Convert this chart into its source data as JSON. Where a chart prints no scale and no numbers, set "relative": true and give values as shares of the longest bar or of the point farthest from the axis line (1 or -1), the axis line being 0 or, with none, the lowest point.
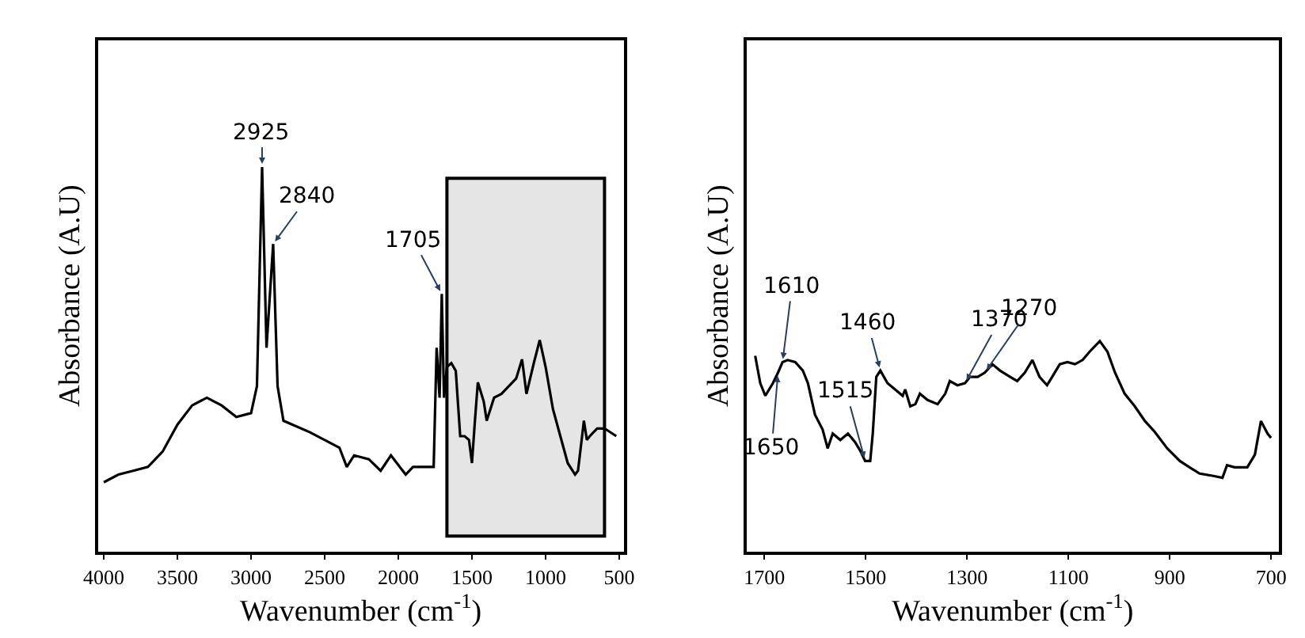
{
  "chart_data": [
    {
      "type": "line",
      "relative": true,
      "xlabel": "Wavenumber (cm$^{-1}$)",
      "ylabel": "Absorbance (A.U)",
      "xlim": [
        4040,
        470
      ],
      "xticks": [
        4000,
        3500,
        3000,
        2500,
        2000,
        1500,
        1000,
        500
      ],
      "tick_labels": "x",
      "grid": false,
      "series": [
        {
          "color": "#000000",
          "x": [
            4000,
            3900,
            3800,
            3700,
            3600,
            3500,
            3400,
            3300,
            3200,
            3100,
            3000,
            2960,
            2925,
            2895,
            2850,
            2820,
            2780,
            2600,
            2400,
            2350,
            2300,
            2200,
            2120,
            2050,
            1950,
            1900,
            1800,
            1760,
            1740,
            1720,
            1705,
            1690,
            1670,
            1640,
            1610,
            1580,
            1550,
            1520,
            1500,
            1480,
            1460,
            1420,
            1400,
            1350,
            1300,
            1250,
            1200,
            1160,
            1130,
            1080,
            1040,
            1000,
            950,
            900,
            850,
            800,
            780,
            740,
            720,
            700,
            650,
            600,
            520
          ],
          "values": [
            0.18,
            0.2,
            0.21,
            0.22,
            0.26,
            0.33,
            0.38,
            0.4,
            0.38,
            0.35,
            0.36,
            0.43,
            1.0,
            0.53,
            0.8,
            0.43,
            0.34,
            0.31,
            0.27,
            0.22,
            0.25,
            0.24,
            0.21,
            0.25,
            0.2,
            0.22,
            0.22,
            0.22,
            0.53,
            0.4,
            0.67,
            0.4,
            0.48,
            0.49,
            0.47,
            0.3,
            0.3,
            0.29,
            0.23,
            0.34,
            0.44,
            0.39,
            0.34,
            0.4,
            0.41,
            0.43,
            0.45,
            0.5,
            0.41,
            0.49,
            0.55,
            0.48,
            0.37,
            0.3,
            0.23,
            0.2,
            0.21,
            0.34,
            0.29,
            0.3,
            0.32,
            0.32,
            0.3
          ]
        }
      ],
      "annotations": [
        {
          "text": "2925",
          "x": 2925,
          "y": 1.0
        },
        {
          "text": "2840",
          "x": 2850,
          "y": 0.8
        },
        {
          "text": "1705",
          "x": 1705,
          "y": 0.67
        }
      ],
      "bands": [
        {
          "axis": "x",
          "from": 1670,
          "to": 600
        }
      ]
    },
    {
      "type": "line",
      "relative": true,
      "xlabel": "Wavenumber (cm$^{-1}$)",
      "ylabel": "Absorbance (A.U)",
      "xlim": [
        1735,
        685
      ],
      "xticks": [
        1700,
        1500,
        1300,
        1100,
        900,
        700
      ],
      "tick_labels": "x",
      "grid": false,
      "series": [
        {
          "color": "#000000",
          "x": [
            1718,
            1708,
            1698,
            1683,
            1673,
            1664,
            1654,
            1639,
            1624,
            1614,
            1600,
            1585,
            1575,
            1565,
            1550,
            1535,
            1521,
            1511,
            1501,
            1491,
            1486,
            1479,
            1471,
            1457,
            1442,
            1427,
            1422,
            1412,
            1402,
            1393,
            1378,
            1358,
            1343,
            1334,
            1319,
            1304,
            1294,
            1279,
            1265,
            1250,
            1235,
            1215,
            1201,
            1186,
            1171,
            1157,
            1142,
            1132,
            1117,
            1102,
            1087,
            1072,
            1058,
            1038,
            1023,
            1008,
            989,
            969,
            949,
            930,
            905,
            880,
            861,
            841,
            816,
            796,
            787,
            772,
            747,
            732,
            720,
            707,
            700
          ],
          "values": [
            0.93,
            0.8,
            0.74,
            0.8,
            0.85,
            0.9,
            0.91,
            0.9,
            0.86,
            0.8,
            0.65,
            0.58,
            0.49,
            0.56,
            0.53,
            0.56,
            0.52,
            0.48,
            0.43,
            0.43,
            0.56,
            0.83,
            0.86,
            0.8,
            0.77,
            0.74,
            0.77,
            0.69,
            0.7,
            0.75,
            0.72,
            0.7,
            0.75,
            0.81,
            0.79,
            0.8,
            0.83,
            0.83,
            0.85,
            0.89,
            0.86,
            0.83,
            0.81,
            0.85,
            0.91,
            0.83,
            0.79,
            0.83,
            0.89,
            0.9,
            0.89,
            0.91,
            0.95,
            1.0,
            0.95,
            0.85,
            0.75,
            0.69,
            0.62,
            0.57,
            0.49,
            0.43,
            0.4,
            0.37,
            0.36,
            0.35,
            0.41,
            0.4,
            0.4,
            0.46,
            0.62,
            0.56,
            0.54
          ]
        }
      ],
      "annotations": [
        {
          "text": "1610",
          "x": 1664,
          "y": 0.9
        },
        {
          "text": "1650",
          "x": 1673,
          "y": 0.85
        },
        {
          "text": "1515",
          "x": 1501,
          "y": 0.43
        },
        {
          "text": "1460",
          "x": 1471,
          "y": 0.86
        },
        {
          "text": "1370",
          "x": 1304,
          "y": 0.8
        },
        {
          "text": "1270",
          "x": 1265,
          "y": 0.85
        }
      ]
    }
  ]
}
